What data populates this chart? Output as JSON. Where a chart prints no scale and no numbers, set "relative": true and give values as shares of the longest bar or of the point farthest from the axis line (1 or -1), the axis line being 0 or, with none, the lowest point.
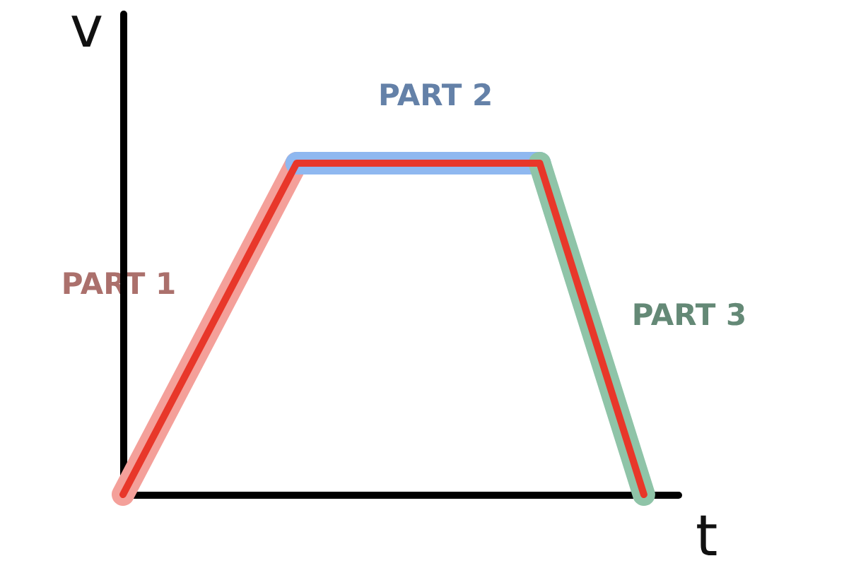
{
  "chart_data": {
    "type": "line",
    "relative": true,
    "xlabel": "t",
    "ylabel": "v",
    "grid": false,
    "legend": false,
    "marker": "none",
    "categories": [
      null,
      null,
      null,
      null,
      null,
      null,
      null,
      null,
      null,
      null,
      null,
      null,
      null,
      null,
      null,
      null,
      null
    ],
    "series": [
      {
        "name": "PART 1",
        "color": "#f4a09a",
        "values": [
          0,
          null,
          null,
          null,
          null,
          1,
          null,
          null,
          null,
          null,
          null,
          null,
          null,
          null,
          null,
          null,
          null
        ]
      },
      {
        "name": "PART 2",
        "color": "#8fb8f0",
        "values": [
          null,
          null,
          null,
          null,
          null,
          1,
          null,
          null,
          null,
          null,
          null,
          null,
          1,
          null,
          null,
          null,
          null
        ]
      },
      {
        "name": "PART 3",
        "color": "#8fc4a8",
        "values": [
          null,
          null,
          null,
          null,
          null,
          null,
          null,
          null,
          null,
          null,
          null,
          null,
          1,
          null,
          null,
          0,
          null
        ]
      },
      {
        "color": "#e8372a",
        "values": [
          0,
          null,
          null,
          null,
          null,
          1,
          null,
          null,
          null,
          null,
          null,
          null,
          1,
          null,
          null,
          0,
          null
        ]
      }
    ]
  }
}
